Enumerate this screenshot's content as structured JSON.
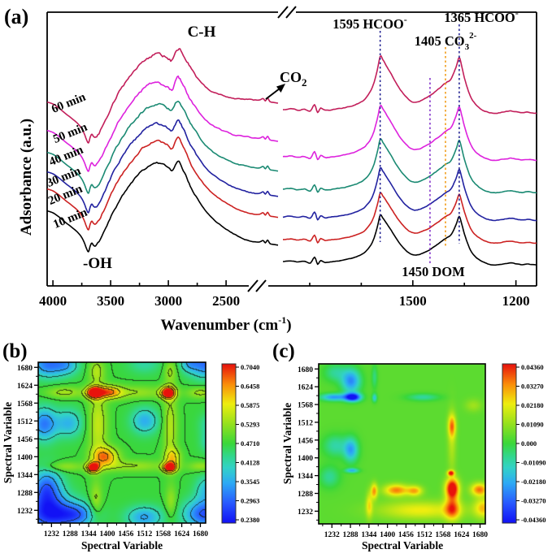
{
  "panels": {
    "a_label": "(a)",
    "b_label": "(b)",
    "c_label": "(c)"
  },
  "chart_data": [
    {
      "panel": "a",
      "type": "line",
      "x_label_parts": {
        "main": "Wavenumber (cm",
        "sup": "-1",
        "close": ")"
      },
      "y_label": "Adsorbance (a.u.)",
      "x_ticks_left": [
        "4000",
        "3500",
        "3000",
        "2500"
      ],
      "x_ticks_left_values": [
        4000,
        3500,
        3000,
        2500
      ],
      "x_minor_left": [
        3750,
        3250,
        2750
      ],
      "x_ticks_right": [
        "1500",
        "1200"
      ],
      "x_ticks_right_values": [
        1500,
        1200
      ],
      "x_minor_right": [
        1800,
        1650,
        1350
      ],
      "axis_left_range": [
        4050,
        2050
      ],
      "axis_right_range": [
        1878,
        1140
      ],
      "amplitude": 240,
      "series": [
        {
          "name": "10 min",
          "color": "#000000",
          "label_color": "#000000",
          "base_left": 334,
          "base_right": 337,
          "tail_lift": -0.05,
          "peak_scale": 1.0,
          "noise": 2.0
        },
        {
          "name": "20 min",
          "color": "#CC2222",
          "label_color": "#CC2222",
          "base_left": 307,
          "base_right": 310,
          "tail_lift": -0.02,
          "peak_scale": 1.0,
          "noise": 2.4
        },
        {
          "name": "30 min",
          "color": "#2222A0",
          "label_color": "#2222A0",
          "base_left": 286,
          "base_right": 282,
          "tail_lift": 0.0,
          "peak_scale": 1.05,
          "noise": 2.8
        },
        {
          "name": "40 min",
          "color": "#1B8A73",
          "label_color": "#1B8A73",
          "base_left": 262,
          "base_right": 248,
          "tail_lift": 0.03,
          "peak_scale": 1.08,
          "noise": 3.0
        },
        {
          "name": "50 min",
          "color": "#DD22DD",
          "label_color": "#DD22DD",
          "base_left": 235,
          "base_right": 208,
          "tail_lift": 0.07,
          "peak_scale": 1.1,
          "noise": 3.3
        },
        {
          "name": "60 min",
          "color": "#C21E5A",
          "label_color": "#9B9B00",
          "base_left": 200,
          "base_right": 150,
          "tail_lift": 0.12,
          "peak_scale": 1.15,
          "noise": 3.5
        }
      ],
      "shape_left": [
        [
          4050,
          0.31
        ],
        [
          4000,
          0.3
        ],
        [
          3950,
          0.28
        ],
        [
          3900,
          0.255
        ],
        [
          3850,
          0.232
        ],
        [
          3800,
          0.208
        ],
        [
          3760,
          0.182
        ],
        [
          3730,
          0.15
        ],
        [
          3710,
          0.118
        ],
        [
          3692,
          0.1
        ],
        [
          3678,
          0.128
        ],
        [
          3663,
          0.145
        ],
        [
          3648,
          0.133
        ],
        [
          3630,
          0.13
        ],
        [
          3600,
          0.152
        ],
        [
          3560,
          0.2
        ],
        [
          3520,
          0.25
        ],
        [
          3480,
          0.3
        ],
        [
          3440,
          0.345
        ],
        [
          3400,
          0.385
        ],
        [
          3350,
          0.43
        ],
        [
          3300,
          0.468
        ],
        [
          3250,
          0.503
        ],
        [
          3200,
          0.528
        ],
        [
          3150,
          0.548
        ],
        [
          3100,
          0.555
        ],
        [
          3050,
          0.548
        ],
        [
          3000,
          0.532
        ],
        [
          2970,
          0.518
        ],
        [
          2940,
          0.552
        ],
        [
          2915,
          0.572
        ],
        [
          2890,
          0.552
        ],
        [
          2860,
          0.515
        ],
        [
          2830,
          0.478
        ],
        [
          2800,
          0.44
        ],
        [
          2760,
          0.4
        ],
        [
          2720,
          0.365
        ],
        [
          2680,
          0.335
        ],
        [
          2640,
          0.31
        ],
        [
          2600,
          0.29
        ],
        [
          2550,
          0.27
        ],
        [
          2500,
          0.252
        ],
        [
          2450,
          0.236
        ],
        [
          2400,
          0.224
        ],
        [
          2350,
          0.214
        ],
        [
          2300,
          0.206
        ],
        [
          2250,
          0.2
        ],
        [
          2210,
          0.2
        ],
        [
          2180,
          0.208
        ],
        [
          2160,
          0.196
        ],
        [
          2140,
          0.21
        ],
        [
          2120,
          0.192
        ],
        [
          2090,
          0.188
        ],
        [
          2050,
          0.184
        ]
      ],
      "shape_right": [
        [
          1878,
          0.062
        ],
        [
          1855,
          0.066
        ],
        [
          1835,
          0.06
        ],
        [
          1815,
          0.064
        ],
        [
          1798,
          0.055
        ],
        [
          1786,
          0.085
        ],
        [
          1777,
          0.048
        ],
        [
          1768,
          0.068
        ],
        [
          1755,
          0.058
        ],
        [
          1735,
          0.062
        ],
        [
          1710,
          0.068
        ],
        [
          1685,
          0.076
        ],
        [
          1660,
          0.09
        ],
        [
          1638,
          0.112
        ],
        [
          1618,
          0.16
        ],
        [
          1604,
          0.235
        ],
        [
          1595,
          0.3
        ],
        [
          1587,
          0.285
        ],
        [
          1578,
          0.262
        ],
        [
          1563,
          0.222
        ],
        [
          1545,
          0.172
        ],
        [
          1528,
          0.134
        ],
        [
          1512,
          0.108
        ],
        [
          1498,
          0.096
        ],
        [
          1483,
          0.098
        ],
        [
          1468,
          0.108
        ],
        [
          1452,
          0.122
        ],
        [
          1437,
          0.14
        ],
        [
          1422,
          0.158
        ],
        [
          1410,
          0.175
        ],
        [
          1400,
          0.186
        ],
        [
          1390,
          0.196
        ],
        [
          1380,
          0.228
        ],
        [
          1372,
          0.262
        ],
        [
          1365,
          0.295
        ],
        [
          1358,
          0.258
        ],
        [
          1350,
          0.205
        ],
        [
          1341,
          0.158
        ],
        [
          1332,
          0.12
        ],
        [
          1322,
          0.094
        ],
        [
          1312,
          0.078
        ],
        [
          1300,
          0.064
        ],
        [
          1285,
          0.052
        ],
        [
          1268,
          0.045
        ],
        [
          1250,
          0.046
        ],
        [
          1232,
          0.052
        ],
        [
          1215,
          0.055
        ],
        [
          1198,
          0.05
        ],
        [
          1182,
          0.046
        ],
        [
          1168,
          0.049
        ],
        [
          1155,
          0.047
        ],
        [
          1140,
          0.044
        ]
      ],
      "annotations": {
        "ch": "C-H",
        "oh": "-OH",
        "co2": {
          "main": "CO",
          "sub": "2"
        },
        "peak1595": {
          "main": "1595 HCOO",
          "sup": "-",
          "color": "#1C1C8F",
          "x": 1595
        },
        "peak1405": {
          "main": "1405 CO",
          "sub": "3",
          "sup": "2-",
          "color": "#F0960A",
          "x": 1405
        },
        "peak1365": {
          "main": "1365 HCOO",
          "sup": "-",
          "color": "#1C1C8F",
          "x": 1365
        },
        "dom": {
          "main": "1450 DOM",
          "color": "#7D2BC8",
          "x": 1450
        }
      }
    },
    {
      "panel": "b",
      "type": "heatmap",
      "x_label": "Spectral Variable",
      "y_label": "Spectral Variable",
      "ticks": [
        1232,
        1288,
        1344,
        1400,
        1456,
        1512,
        1568,
        1624,
        1680
      ],
      "tick_labels": [
        "1232",
        "1288",
        "1344",
        "1400",
        "1456",
        "1512",
        "1568",
        "1624",
        "1680"
      ],
      "axis_range": [
        1192,
        1696
      ],
      "z_range": [
        0.238,
        0.704
      ],
      "base": 0.47,
      "contours": true,
      "colorbar_labels": [
        "0.7040",
        "0.6458",
        "0.5875",
        "0.5293",
        "0.4710",
        "0.4128",
        "0.3545",
        "0.2963",
        "0.2380"
      ],
      "blobs": [
        [
          1360,
          1601,
          0.27,
          16,
          13
        ],
        [
          1404,
          1602,
          0.16,
          26,
          14
        ],
        [
          1583,
          1600,
          0.28,
          15,
          13
        ],
        [
          1357,
          1366,
          0.27,
          13,
          11
        ],
        [
          1394,
          1400,
          0.17,
          27,
          21
        ],
        [
          1588,
          1366,
          0.26,
          14,
          11
        ],
        [
          1597,
          1398,
          0.11,
          17,
          19
        ],
        [
          1372,
          1500,
          0.09,
          20,
          80
        ],
        [
          1590,
          1495,
          0.08,
          15,
          80
        ],
        [
          1480,
          1601,
          0.06,
          75,
          15
        ],
        [
          1478,
          1371,
          0.06,
          75,
          13
        ],
        [
          1368,
          1668,
          0.07,
          16,
          28
        ],
        [
          1366,
          1262,
          0.07,
          13,
          40
        ],
        [
          1590,
          1668,
          0.06,
          13,
          26
        ],
        [
          1592,
          1258,
          0.06,
          12,
          36
        ],
        [
          1270,
          1601,
          0.07,
          40,
          13
        ],
        [
          1268,
          1369,
          0.06,
          40,
          11
        ],
        [
          1682,
          1600,
          0.07,
          28,
          12
        ],
        [
          1684,
          1370,
          0.06,
          28,
          11
        ],
        [
          1225,
          1220,
          -0.2,
          55,
          42
        ],
        [
          1218,
          1302,
          -0.16,
          32,
          42
        ],
        [
          1310,
          1218,
          -0.13,
          40,
          26
        ],
        [
          1692,
          1220,
          -0.18,
          42,
          32
        ],
        [
          1700,
          1298,
          -0.09,
          24,
          30
        ],
        [
          1222,
          1688,
          -0.15,
          38,
          28
        ],
        [
          1280,
          1688,
          -0.08,
          26,
          22
        ],
        [
          1696,
          1690,
          -0.16,
          36,
          30
        ],
        [
          1645,
          1692,
          -0.07,
          18,
          18
        ],
        [
          1210,
          1502,
          -0.15,
          28,
          36
        ],
        [
          1285,
          1505,
          -0.1,
          28,
          30
        ],
        [
          1512,
          1210,
          -0.12,
          38,
          24
        ],
        [
          1513,
          1512,
          -0.11,
          28,
          28
        ],
        [
          1512,
          1692,
          -0.05,
          34,
          22
        ],
        [
          1704,
          1500,
          -0.05,
          20,
          26
        ],
        [
          1706,
          1445,
          -0.06,
          18,
          24
        ]
      ]
    },
    {
      "panel": "c",
      "type": "heatmap",
      "x_label": "Spectral Variable",
      "y_label": "Spectral Variable",
      "ticks": [
        1232,
        1288,
        1344,
        1400,
        1456,
        1512,
        1568,
        1624,
        1680
      ],
      "tick_labels": [
        "1232",
        "1288",
        "1344",
        "1400",
        "1456",
        "1512",
        "1568",
        "1624",
        "1680"
      ],
      "axis_range": [
        1192,
        1696
      ],
      "z_range": [
        -0.0436,
        0.0436
      ],
      "base": 0.004,
      "contours": false,
      "colorbar_labels": [
        "0.04360",
        "0.03270",
        "0.02180",
        "0.01090",
        "0.000",
        "-0.01090",
        "-0.02180",
        "-0.03270",
        "-0.04360"
      ],
      "blobs": [
        [
          1295,
          1591,
          -0.052,
          17,
          9
        ],
        [
          1290,
          1642,
          -0.03,
          20,
          26
        ],
        [
          1238,
          1591,
          -0.028,
          28,
          8
        ],
        [
          1290,
          1425,
          -0.026,
          15,
          26
        ],
        [
          1243,
          1438,
          -0.014,
          26,
          24
        ],
        [
          1293,
          1360,
          -0.024,
          14,
          5
        ],
        [
          1361,
          1589,
          -0.02,
          5,
          9
        ],
        [
          1508,
          1591,
          -0.013,
          35,
          8
        ],
        [
          1361,
          1655,
          -0.01,
          6,
          26
        ],
        [
          1242,
          1668,
          -0.012,
          24,
          20
        ],
        [
          1225,
          1340,
          -0.012,
          22,
          24
        ],
        [
          1595,
          1500,
          0.026,
          8,
          24
        ],
        [
          1592,
          1352,
          0.04,
          7,
          6
        ],
        [
          1596,
          1303,
          0.05,
          14,
          22
        ],
        [
          1596,
          1240,
          0.03,
          16,
          25
        ],
        [
          1678,
          1300,
          0.031,
          18,
          14
        ],
        [
          1690,
          1242,
          0.022,
          20,
          22
        ],
        [
          1427,
          1298,
          0.03,
          26,
          13
        ],
        [
          1483,
          1296,
          0.024,
          16,
          11
        ],
        [
          1360,
          1295,
          0.027,
          7,
          17
        ],
        [
          1345,
          1252,
          0.018,
          7,
          28
        ],
        [
          1500,
          1235,
          0.018,
          90,
          20
        ],
        [
          1595,
          1450,
          0.01,
          9,
          70
        ],
        [
          1660,
          1565,
          0.008,
          18,
          14
        ]
      ]
    }
  ]
}
